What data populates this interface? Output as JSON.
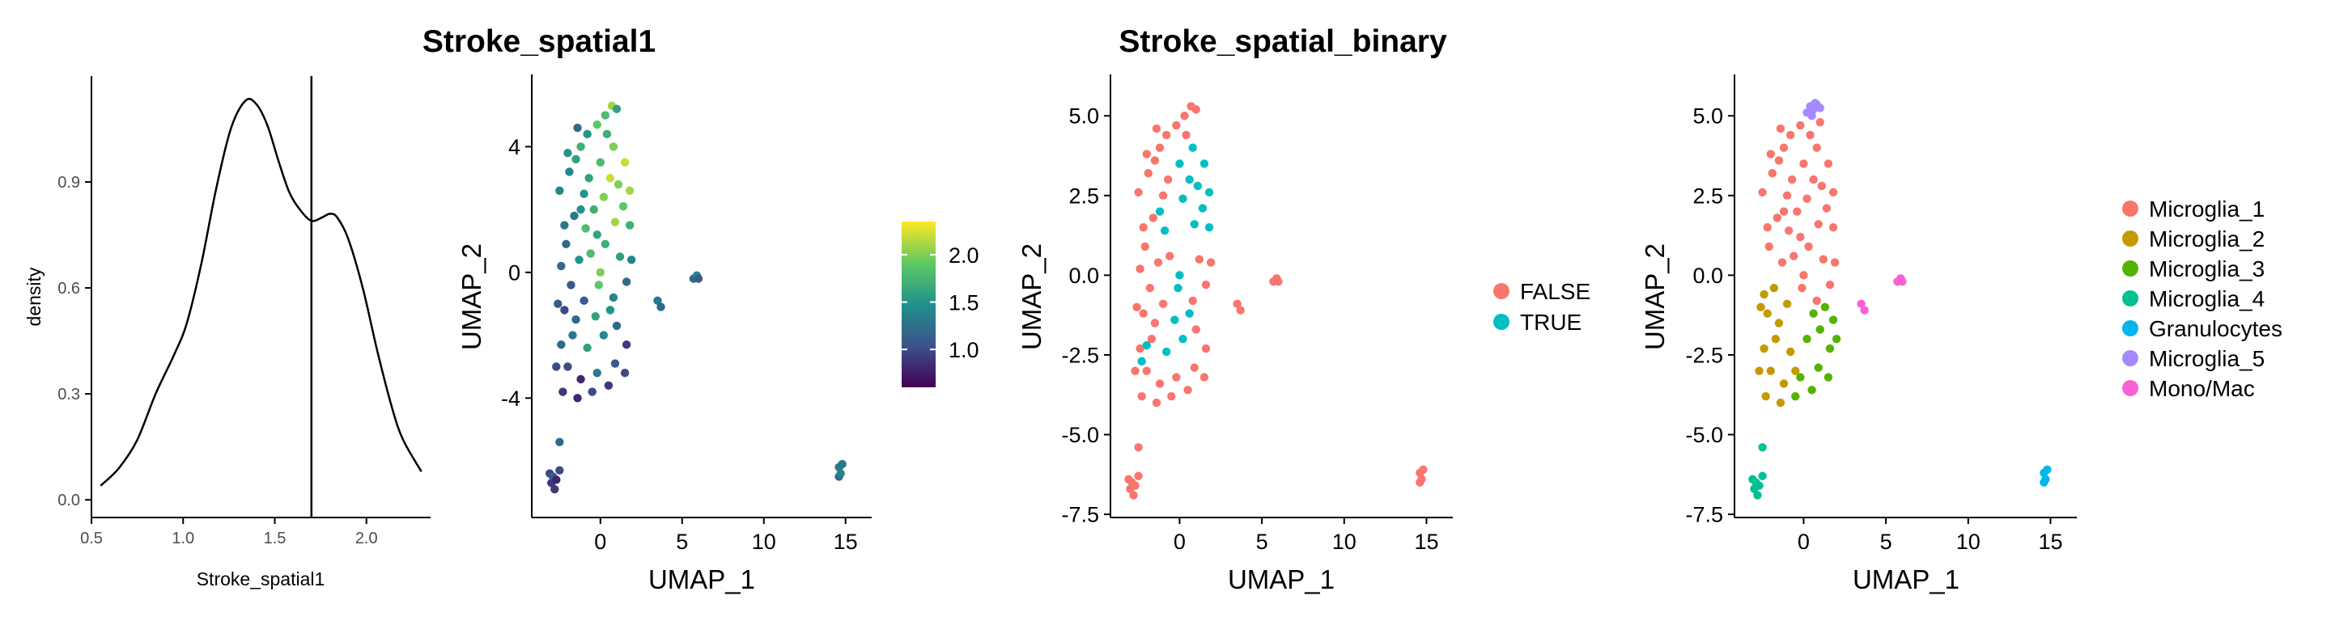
{
  "chart_data": [
    {
      "type": "line",
      "panel": "density",
      "xlabel": "Stroke_spatial1",
      "ylabel": "density",
      "xlim": [
        0.5,
        2.35
      ],
      "ylim": [
        -0.05,
        1.2
      ],
      "xticks": [
        "0.5",
        "1.0",
        "1.5",
        "2.0"
      ],
      "yticks": [
        "0.0",
        "0.3",
        "0.6",
        "0.9"
      ],
      "threshold_x": 1.7,
      "x": [
        0.55,
        0.65,
        0.75,
        0.85,
        0.95,
        1.02,
        1.1,
        1.18,
        1.26,
        1.34,
        1.4,
        1.46,
        1.52,
        1.58,
        1.64,
        1.7,
        1.76,
        1.8,
        1.84,
        1.9,
        1.98,
        2.06,
        2.14,
        2.2,
        2.3
      ],
      "y": [
        0.04,
        0.09,
        0.17,
        0.3,
        0.41,
        0.5,
        0.67,
        0.88,
        1.05,
        1.13,
        1.12,
        1.06,
        0.96,
        0.87,
        0.82,
        0.79,
        0.8,
        0.81,
        0.8,
        0.74,
        0.6,
        0.42,
        0.26,
        0.17,
        0.08
      ]
    },
    {
      "type": "scatter",
      "panel": "continuous",
      "title": "Stroke_spatial1",
      "xlabel": "UMAP_1",
      "ylabel": "UMAP_2",
      "xlim": [
        -4.2,
        16.6
      ],
      "ylim": [
        -7.8,
        6.3
      ],
      "xticks": [
        "0",
        "5",
        "10",
        "15"
      ],
      "yticks": [
        "-4",
        "0",
        "4"
      ],
      "colorbar": {
        "min": 0.6,
        "max": 2.35,
        "ticks": [
          "1.0",
          "1.5",
          "2.0"
        ]
      },
      "points": [
        [
          -3.1,
          -6.4,
          1.0
        ],
        [
          -3.0,
          -6.7,
          0.9
        ],
        [
          -2.9,
          -6.5,
          1.1
        ],
        [
          -2.7,
          -6.6,
          0.8
        ],
        [
          -2.5,
          -6.3,
          1.0
        ],
        [
          -2.8,
          -6.9,
          0.9
        ],
        [
          -2.5,
          -5.4,
          1.2
        ],
        [
          14.6,
          -6.2,
          1.3
        ],
        [
          14.6,
          -6.5,
          1.2
        ],
        [
          14.7,
          -6.4,
          1.4
        ],
        [
          14.8,
          -6.1,
          1.3
        ],
        [
          3.5,
          -0.9,
          1.3
        ],
        [
          3.7,
          -1.1,
          1.2
        ],
        [
          5.7,
          -0.2,
          1.2
        ],
        [
          5.9,
          -0.1,
          1.4
        ],
        [
          6.0,
          -0.2,
          1.1
        ],
        [
          -1.9,
          3.2,
          1.4
        ],
        [
          -1.5,
          3.6,
          1.6
        ],
        [
          -1.2,
          4.0,
          1.7
        ],
        [
          -0.8,
          4.4,
          1.5
        ],
        [
          -0.2,
          4.7,
          1.9
        ],
        [
          0.3,
          5.0,
          1.8
        ],
        [
          0.7,
          5.3,
          2.1
        ],
        [
          1.0,
          5.2,
          1.6
        ],
        [
          -1.0,
          2.5,
          1.5
        ],
        [
          -0.4,
          2.0,
          1.7
        ],
        [
          0.2,
          2.4,
          2.0
        ],
        [
          0.6,
          3.0,
          2.2
        ],
        [
          1.1,
          2.8,
          2.0
        ],
        [
          1.4,
          2.1,
          1.9
        ],
        [
          0.9,
          1.6,
          2.1
        ],
        [
          -0.2,
          1.2,
          1.6
        ],
        [
          -1.6,
          1.8,
          1.3
        ],
        [
          -2.1,
          0.9,
          1.2
        ],
        [
          -1.3,
          0.4,
          1.5
        ],
        [
          -0.6,
          0.6,
          1.8
        ],
        [
          0.3,
          0.9,
          1.7
        ],
        [
          1.2,
          0.5,
          1.6
        ],
        [
          1.6,
          -0.3,
          1.2
        ],
        [
          0.8,
          -0.8,
          1.4
        ],
        [
          -0.1,
          -0.4,
          1.9
        ],
        [
          -1.0,
          -0.9,
          1.1
        ],
        [
          -2.2,
          -1.2,
          1.0
        ],
        [
          -1.7,
          -2.0,
          1.3
        ],
        [
          -0.8,
          -2.4,
          1.6
        ],
        [
          0.2,
          -2.0,
          1.4
        ],
        [
          1.0,
          -1.7,
          1.2
        ],
        [
          1.6,
          -2.3,
          0.9
        ],
        [
          0.9,
          -2.9,
          1.1
        ],
        [
          -0.2,
          -3.2,
          1.3
        ],
        [
          -1.2,
          -3.4,
          0.8
        ],
        [
          -2.0,
          -3.0,
          1.0
        ],
        [
          -2.3,
          -3.8,
          0.9
        ],
        [
          -1.4,
          -4.0,
          0.8
        ],
        [
          -0.5,
          -3.8,
          1.0
        ],
        [
          0.5,
          -3.6,
          0.9
        ],
        [
          1.5,
          -3.2,
          1.0
        ],
        [
          -2.4,
          -2.3,
          1.2
        ],
        [
          -2.6,
          -1.0,
          1.1
        ],
        [
          -2.4,
          0.2,
          1.2
        ],
        [
          -2.2,
          1.5,
          1.3
        ],
        [
          -2.5,
          2.6,
          1.4
        ],
        [
          -2.0,
          3.8,
          1.5
        ],
        [
          -1.4,
          4.6,
          1.2
        ],
        [
          0.0,
          3.5,
          1.8
        ],
        [
          0.8,
          4.0,
          2.0
        ],
        [
          -0.7,
          3.0,
          1.6
        ],
        [
          1.5,
          3.5,
          2.2
        ],
        [
          1.8,
          2.6,
          2.1
        ],
        [
          1.8,
          1.5,
          1.7
        ],
        [
          1.9,
          0.4,
          1.4
        ],
        [
          -1.8,
          -0.4,
          1.1
        ],
        [
          -0.3,
          -1.4,
          1.6
        ],
        [
          0.6,
          -1.2,
          1.5
        ],
        [
          -1.5,
          -1.5,
          1.2
        ],
        [
          -2.7,
          -3.0,
          1.0
        ],
        [
          0.0,
          0.0,
          2.0
        ],
        [
          -0.9,
          1.4,
          1.8
        ],
        [
          0.4,
          4.4,
          1.7
        ],
        [
          -1.2,
          2.0,
          1.5
        ]
      ]
    },
    {
      "type": "scatter",
      "panel": "binary",
      "title": "Stroke_spatial_binary",
      "xlabel": "UMAP_1",
      "ylabel": "UMAP_2",
      "xlim": [
        -4.2,
        16.6
      ],
      "ylim": [
        -7.6,
        6.3
      ],
      "xticks": [
        "0",
        "5",
        "10",
        "15"
      ],
      "yticks": [
        "-7.5",
        "-5.0",
        "-2.5",
        "0.0",
        "2.5",
        "5.0"
      ],
      "legend": [
        {
          "label": "FALSE",
          "color": "#F8766D"
        },
        {
          "label": "TRUE",
          "color": "#00BFC4"
        }
      ],
      "false_points": [
        [
          -3.1,
          -6.4
        ],
        [
          -3.0,
          -6.7
        ],
        [
          -2.9,
          -6.5
        ],
        [
          -2.7,
          -6.6
        ],
        [
          -2.5,
          -6.3
        ],
        [
          -2.8,
          -6.9
        ],
        [
          -2.5,
          -5.4
        ],
        [
          14.6,
          -6.2
        ],
        [
          14.6,
          -6.5
        ],
        [
          14.7,
          -6.4
        ],
        [
          14.8,
          -6.1
        ],
        [
          3.5,
          -0.9
        ],
        [
          3.7,
          -1.1
        ],
        [
          5.7,
          -0.2
        ],
        [
          5.9,
          -0.1
        ],
        [
          6.0,
          -0.2
        ],
        [
          -1.9,
          3.2
        ],
        [
          -1.5,
          3.6
        ],
        [
          -1.2,
          4.0
        ],
        [
          -0.8,
          4.4
        ],
        [
          -0.2,
          4.7
        ],
        [
          0.3,
          5.0
        ],
        [
          0.7,
          5.3
        ],
        [
          1.0,
          5.2
        ],
        [
          -1.0,
          2.5
        ],
        [
          -1.6,
          1.8
        ],
        [
          -2.1,
          0.9
        ],
        [
          -1.3,
          0.4
        ],
        [
          -0.6,
          0.6
        ],
        [
          1.2,
          0.5
        ],
        [
          1.6,
          -0.3
        ],
        [
          0.8,
          -0.8
        ],
        [
          -1.0,
          -0.9
        ],
        [
          -2.2,
          -1.2
        ],
        [
          -1.7,
          -2.0
        ],
        [
          1.0,
          -1.7
        ],
        [
          1.6,
          -2.3
        ],
        [
          0.9,
          -2.9
        ],
        [
          -0.2,
          -3.2
        ],
        [
          -1.2,
          -3.4
        ],
        [
          -2.0,
          -3.0
        ],
        [
          -2.3,
          -3.8
        ],
        [
          -1.4,
          -4.0
        ],
        [
          -0.5,
          -3.8
        ],
        [
          0.5,
          -3.6
        ],
        [
          1.5,
          -3.2
        ],
        [
          -2.4,
          -2.3
        ],
        [
          -2.6,
          -1.0
        ],
        [
          -2.4,
          0.2
        ],
        [
          -2.2,
          1.5
        ],
        [
          -2.5,
          2.6
        ],
        [
          -2.0,
          3.8
        ],
        [
          -1.4,
          4.6
        ],
        [
          -0.7,
          3.0
        ],
        [
          1.9,
          0.4
        ],
        [
          -1.8,
          -0.4
        ],
        [
          -1.5,
          -1.5
        ],
        [
          -2.7,
          -3.0
        ],
        [
          0.4,
          4.4
        ]
      ],
      "true_points": [
        [
          0.2,
          2.4
        ],
        [
          0.6,
          3.0
        ],
        [
          1.1,
          2.8
        ],
        [
          1.4,
          2.1
        ],
        [
          0.9,
          1.6
        ],
        [
          0.0,
          3.5
        ],
        [
          0.8,
          4.0
        ],
        [
          1.5,
          3.5
        ],
        [
          1.8,
          2.6
        ],
        [
          1.8,
          1.5
        ],
        [
          -0.1,
          -0.4
        ],
        [
          -0.3,
          -1.4
        ],
        [
          0.6,
          -1.2
        ],
        [
          -0.8,
          -2.4
        ],
        [
          0.2,
          -2.0
        ],
        [
          0.0,
          0.0
        ],
        [
          -0.9,
          1.4
        ],
        [
          -1.2,
          2.0
        ],
        [
          -2.3,
          -2.7
        ],
        [
          -2.0,
          -2.2
        ]
      ]
    },
    {
      "type": "scatter",
      "panel": "clusters",
      "xlabel": "UMAP_1",
      "ylabel": "UMAP_2",
      "xlim": [
        -4.2,
        16.6
      ],
      "ylim": [
        -7.6,
        6.3
      ],
      "xticks": [
        "0",
        "5",
        "10",
        "15"
      ],
      "yticks": [
        "-7.5",
        "-5.0",
        "-2.5",
        "0.0",
        "2.5",
        "5.0"
      ],
      "legend": [
        {
          "label": "Microglia_1",
          "color": "#F8766D"
        },
        {
          "label": "Microglia_2",
          "color": "#C49A00"
        },
        {
          "label": "Microglia_3",
          "color": "#53B400"
        },
        {
          "label": "Microglia_4",
          "color": "#00C094"
        },
        {
          "label": "Granulocytes",
          "color": "#00B6EB"
        },
        {
          "label": "Microglia_5",
          "color": "#A58AFF"
        },
        {
          "label": "Mono/Mac",
          "color": "#FB61D7"
        }
      ],
      "clusters": [
        {
          "name": "Microglia_1",
          "points": [
            [
              -1.9,
              3.2
            ],
            [
              -1.5,
              3.6
            ],
            [
              -1.2,
              4.0
            ],
            [
              -0.8,
              4.4
            ],
            [
              -0.2,
              4.7
            ],
            [
              1.0,
              4.8
            ],
            [
              -1.0,
              2.5
            ],
            [
              -0.4,
              2.0
            ],
            [
              0.2,
              2.4
            ],
            [
              0.6,
              3.0
            ],
            [
              1.1,
              2.8
            ],
            [
              1.4,
              2.1
            ],
            [
              0.9,
              1.6
            ],
            [
              -0.2,
              1.2
            ],
            [
              -1.6,
              1.8
            ],
            [
              -2.1,
              0.9
            ],
            [
              -1.3,
              0.4
            ],
            [
              -0.6,
              0.6
            ],
            [
              0.3,
              0.9
            ],
            [
              1.2,
              0.5
            ],
            [
              1.6,
              -0.3
            ],
            [
              0.8,
              -0.8
            ],
            [
              -0.1,
              -0.4
            ],
            [
              -2.2,
              1.5
            ],
            [
              -2.5,
              2.6
            ],
            [
              -2.0,
              3.8
            ],
            [
              -1.4,
              4.6
            ],
            [
              0.0,
              3.5
            ],
            [
              0.8,
              4.0
            ],
            [
              -0.7,
              3.0
            ],
            [
              1.5,
              3.5
            ],
            [
              1.8,
              2.6
            ],
            [
              1.8,
              1.5
            ],
            [
              1.9,
              0.4
            ],
            [
              0.0,
              0.0
            ],
            [
              -0.9,
              1.4
            ],
            [
              0.4,
              4.4
            ],
            [
              -1.2,
              2.0
            ]
          ]
        },
        {
          "name": "Microglia_2",
          "points": [
            [
              -2.4,
              -0.6
            ],
            [
              -2.2,
              -1.2
            ],
            [
              -1.7,
              -2.0
            ],
            [
              -0.8,
              -2.4
            ],
            [
              -1.2,
              -3.4
            ],
            [
              -2.0,
              -3.0
            ],
            [
              -2.3,
              -3.8
            ],
            [
              -1.4,
              -4.0
            ],
            [
              -2.4,
              -2.3
            ],
            [
              -2.6,
              -1.0
            ],
            [
              -1.8,
              -0.4
            ],
            [
              -1.5,
              -1.5
            ],
            [
              -2.7,
              -3.0
            ],
            [
              -1.0,
              -0.9
            ],
            [
              -0.5,
              -3.0
            ]
          ]
        },
        {
          "name": "Microglia_3",
          "points": [
            [
              1.0,
              -1.7
            ],
            [
              1.6,
              -2.3
            ],
            [
              0.9,
              -2.9
            ],
            [
              -0.2,
              -3.2
            ],
            [
              -0.5,
              -3.8
            ],
            [
              0.5,
              -3.6
            ],
            [
              1.5,
              -3.2
            ],
            [
              0.6,
              -1.2
            ],
            [
              0.2,
              -2.0
            ],
            [
              1.8,
              -1.4
            ],
            [
              2.0,
              -2.0
            ],
            [
              1.3,
              -1.0
            ]
          ]
        },
        {
          "name": "Microglia_4",
          "points": [
            [
              -3.1,
              -6.4
            ],
            [
              -3.0,
              -6.7
            ],
            [
              -2.9,
              -6.5
            ],
            [
              -2.7,
              -6.6
            ],
            [
              -2.5,
              -6.3
            ],
            [
              -2.8,
              -6.9
            ],
            [
              -2.5,
              -5.4
            ]
          ]
        },
        {
          "name": "Granulocytes",
          "points": [
            [
              14.6,
              -6.2
            ],
            [
              14.6,
              -6.5
            ],
            [
              14.7,
              -6.4
            ],
            [
              14.8,
              -6.1
            ]
          ]
        },
        {
          "name": "Microglia_5",
          "points": [
            [
              0.2,
              5.1
            ],
            [
              0.4,
              5.3
            ],
            [
              0.6,
              5.2
            ],
            [
              0.8,
              5.35
            ],
            [
              1.0,
              5.25
            ],
            [
              0.5,
              5.0
            ],
            [
              0.7,
              5.4
            ]
          ]
        },
        {
          "name": "Mono/Mac",
          "points": [
            [
              3.5,
              -0.9
            ],
            [
              3.7,
              -1.1
            ],
            [
              5.7,
              -0.2
            ],
            [
              5.9,
              -0.1
            ],
            [
              6.0,
              -0.2
            ]
          ]
        }
      ]
    }
  ]
}
